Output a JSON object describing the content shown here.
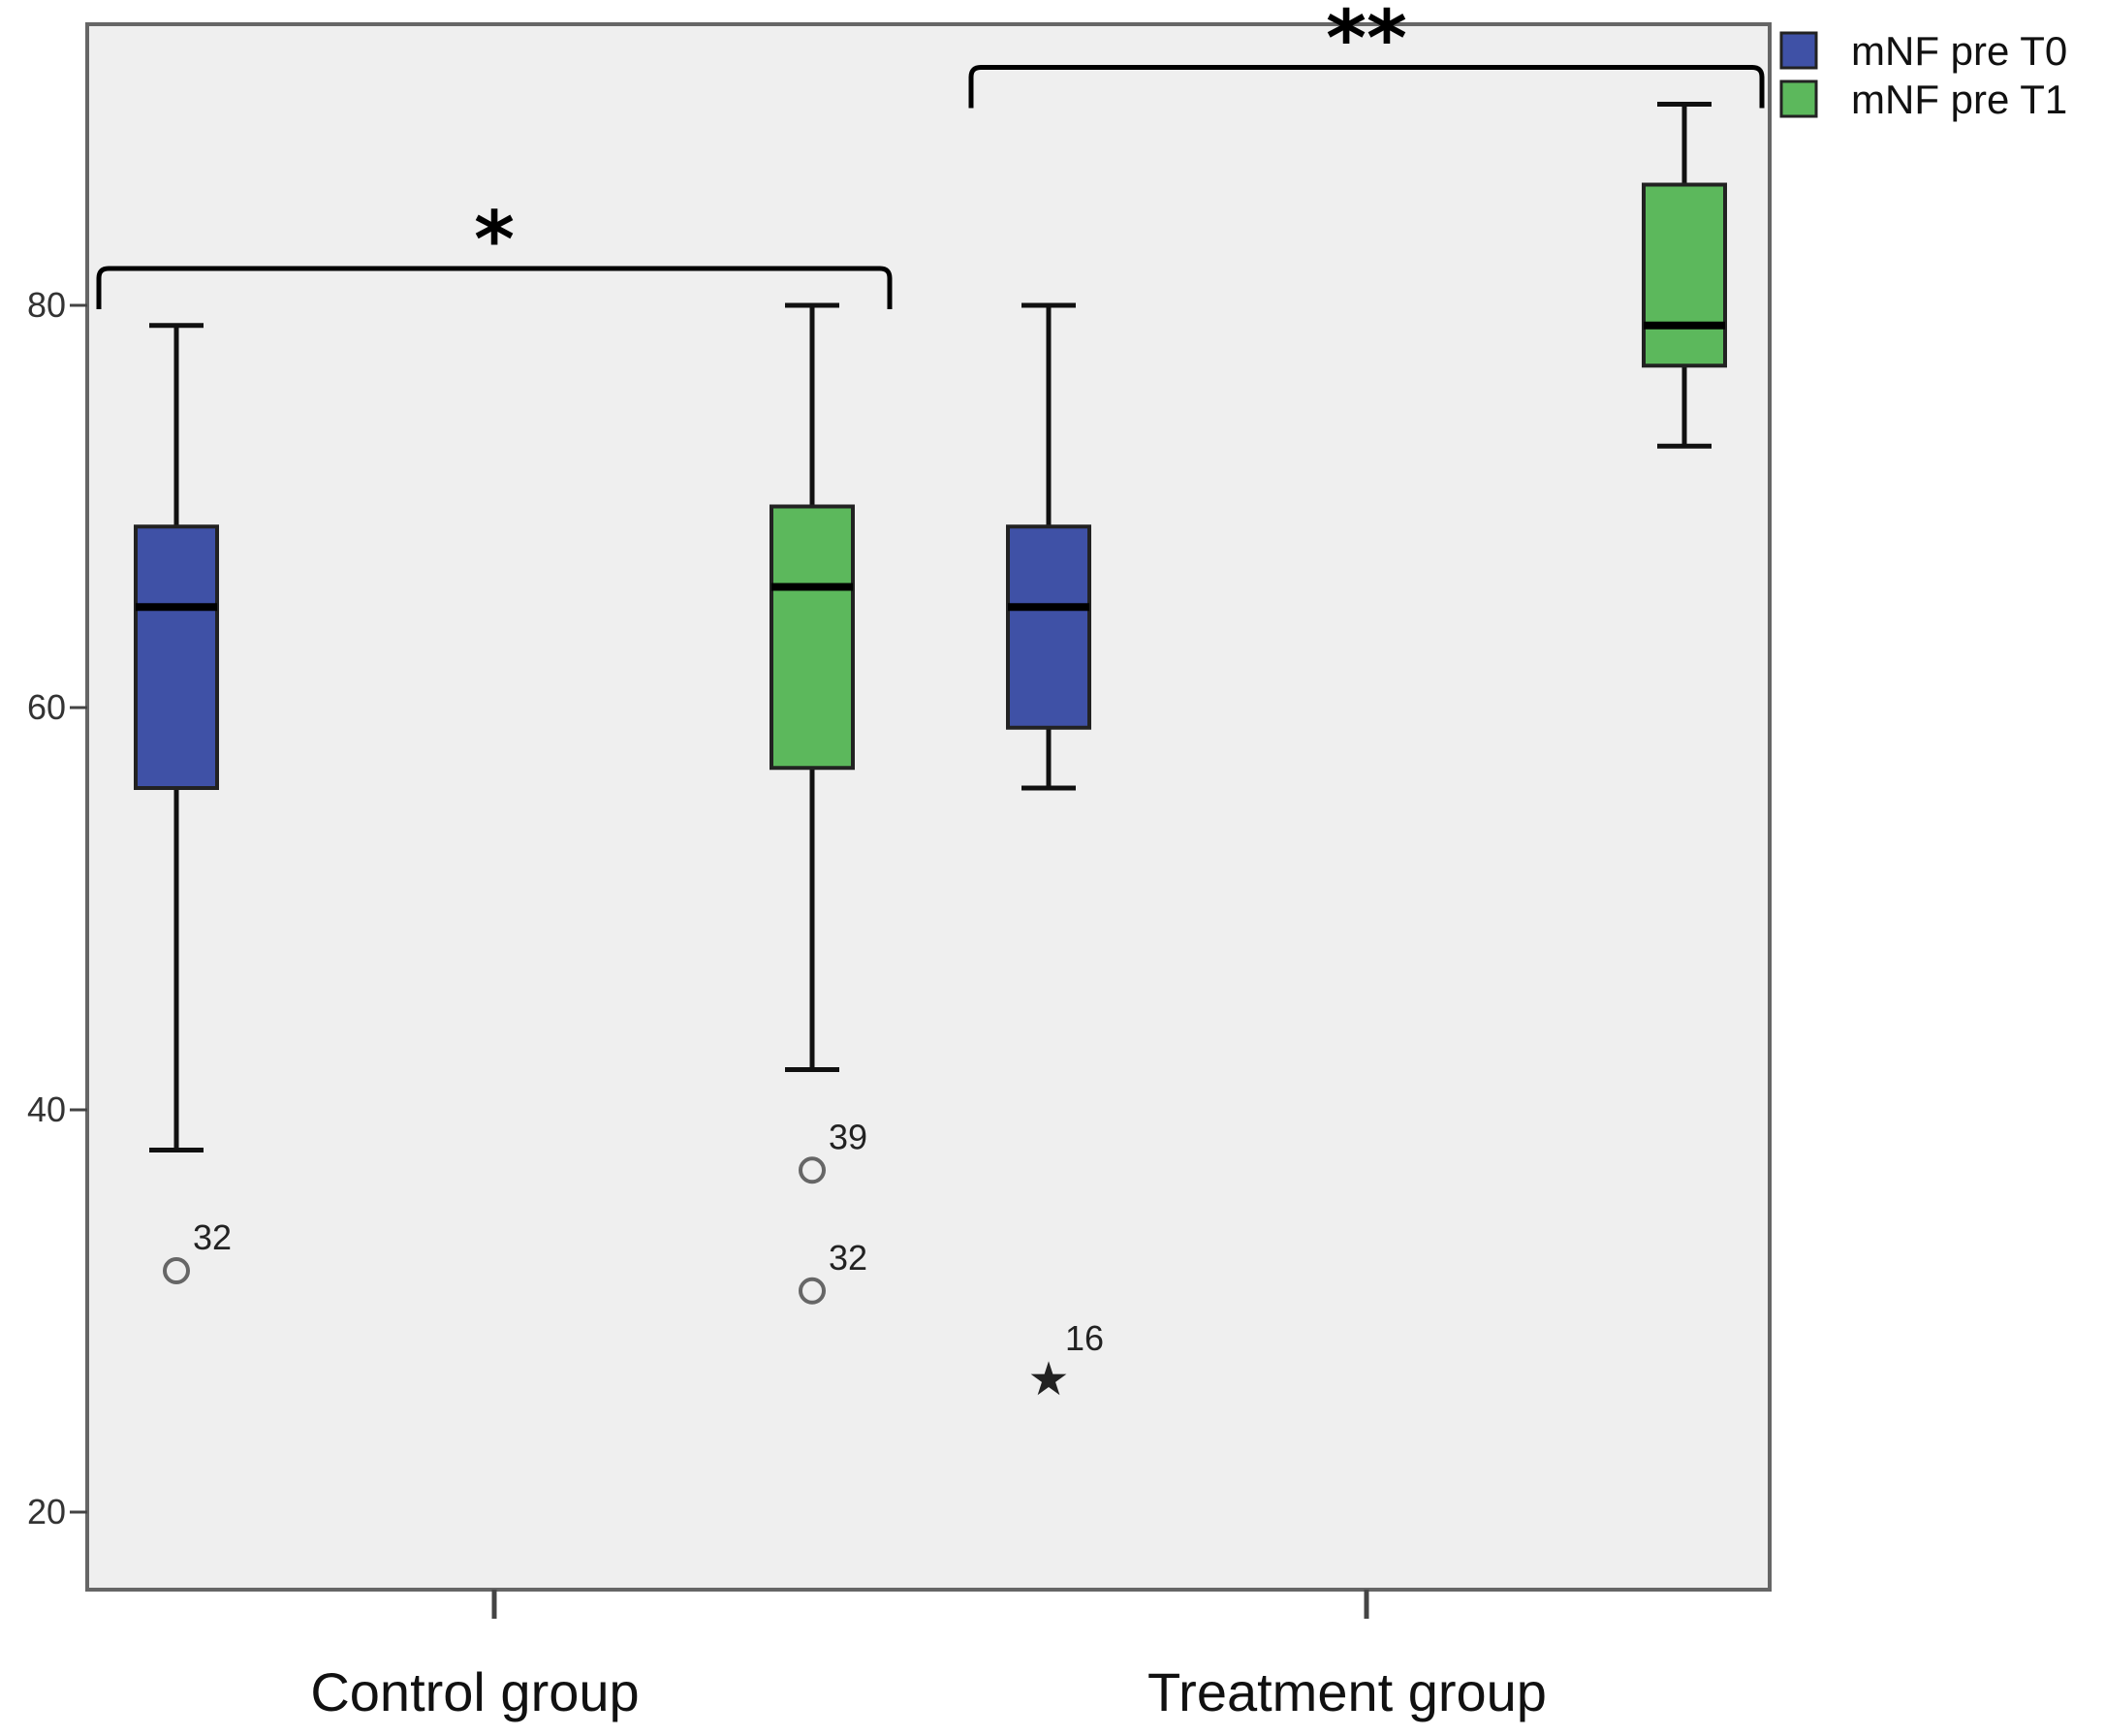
{
  "chart_data": {
    "type": "boxplot",
    "title": "",
    "xlabel": "",
    "ylabel": "",
    "ylim": [
      16,
      94
    ],
    "y_ticks": [
      20,
      40,
      60,
      80
    ],
    "y_tick_labels": [
      "20",
      "40",
      "60",
      "80"
    ],
    "categories": [
      "Control group",
      "Treatment group"
    ],
    "series": [
      {
        "name": "mNF pre T0",
        "color": "#3F51A6",
        "boxes": [
          {
            "category": "Control group",
            "min": 38,
            "q1": 56,
            "median": 65,
            "q3": 69,
            "max": 79,
            "outliers": [
              {
                "value": 32,
                "label": "32",
                "marker": "circle"
              }
            ]
          },
          {
            "category": "Treatment group",
            "min": 56,
            "q1": 59,
            "median": 65,
            "q3": 69,
            "max": 80,
            "outliers": [
              {
                "value": 27,
                "label": "16",
                "marker": "star"
              }
            ]
          }
        ]
      },
      {
        "name": "mNF pre T1",
        "color": "#5CB85C",
        "boxes": [
          {
            "category": "Control group",
            "min": 42,
            "q1": 57,
            "median": 66,
            "q3": 70,
            "max": 80,
            "outliers": [
              {
                "value": 37,
                "label": "39",
                "marker": "circle"
              },
              {
                "value": 31,
                "label": "32",
                "marker": "circle"
              }
            ]
          },
          {
            "category": "Treatment group",
            "min": 73,
            "q1": 77,
            "median": 79,
            "q3": 86,
            "max": 90,
            "outliers": []
          }
        ]
      }
    ],
    "significance": [
      {
        "category": "Control group",
        "label": "*"
      },
      {
        "category": "Treatment group",
        "label": "**"
      }
    ],
    "legend": {
      "placement": "top-right",
      "entries": [
        "mNF pre T0",
        "mNF pre T1"
      ]
    },
    "colors": {
      "plot_background": "#EFEFEF",
      "frame": "#666666"
    }
  }
}
